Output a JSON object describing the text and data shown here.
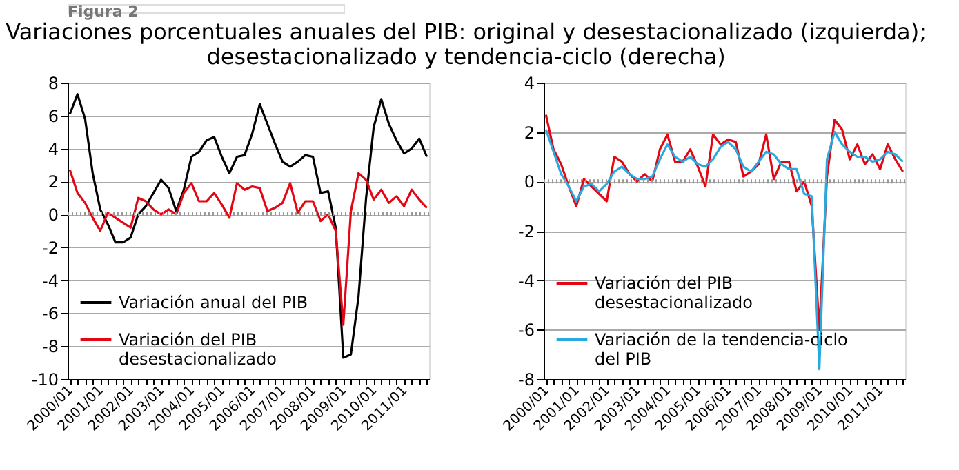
{
  "chart_data": [
    {
      "type": "line",
      "title": "Variaciones porcentuales anuales del PIB: original y desestacionalizado (izquierda); desestacionalizado y tendencia-ciclo (derecha)",
      "annotations": [
        "Figura 2"
      ],
      "categories": [
        "2000/01",
        null,
        null,
        null,
        "2001/01",
        null,
        null,
        null,
        "2002/01",
        null,
        null,
        null,
        "2003/01",
        null,
        null,
        null,
        "2004/01",
        null,
        null,
        null,
        "2005/01",
        null,
        null,
        null,
        "2006/01",
        null,
        null,
        null,
        "2007/01",
        null,
        null,
        null,
        "2008/01",
        null,
        null,
        null,
        "2009/01",
        null,
        null,
        null,
        "2010/01",
        null,
        null,
        null,
        "2011/01",
        null,
        null,
        null
      ],
      "series": [
        {
          "name": "Variación anual del PIB",
          "color": "#000000",
          "values": [
            6.1,
            7.3,
            5.8,
            2.5,
            0.3,
            -0.6,
            -1.7,
            -1.7,
            -1.4,
            0.0,
            0.5,
            1.3,
            2.1,
            1.6,
            0.2,
            1.5,
            3.5,
            3.8,
            4.5,
            4.7,
            3.5,
            2.5,
            3.5,
            3.6,
            4.9,
            6.7,
            5.5,
            4.3,
            3.2,
            2.9,
            3.2,
            3.6,
            3.5,
            1.3,
            1.4,
            -0.8,
            -8.7,
            -8.5,
            -5.0,
            1.0,
            5.3,
            7.0,
            5.5,
            4.5,
            3.7,
            4.0,
            4.6,
            3.5
          ]
        },
        {
          "name": "Variación del PIB desestacionalizado",
          "color": "#e30613",
          "values": [
            2.7,
            1.3,
            0.7,
            -0.2,
            -1.0,
            0.1,
            -0.2,
            -0.5,
            -0.8,
            1.0,
            0.8,
            0.3,
            0.0,
            0.3,
            0.0,
            1.3,
            1.9,
            0.8,
            0.8,
            1.3,
            0.6,
            -0.2,
            1.9,
            1.5,
            1.7,
            1.6,
            0.2,
            0.4,
            0.7,
            1.9,
            0.1,
            0.8,
            0.8,
            -0.4,
            0.0,
            -1.0,
            -6.7,
            0.2,
            2.5,
            2.1,
            0.9,
            1.5,
            0.7,
            1.1,
            0.5,
            1.5,
            0.9,
            0.4
          ]
        }
      ],
      "ylim": [
        -10,
        8
      ],
      "yticks": [
        -10,
        -8,
        -6,
        -4,
        -2,
        0,
        2,
        4,
        6,
        8
      ],
      "grid": "y",
      "legend": "bottom left",
      "ref_lines": [
        {
          "axis": "y",
          "value": 0,
          "color": "#999999",
          "line_style": "dotted"
        }
      ]
    },
    {
      "type": "line",
      "categories": [
        "2000/01",
        null,
        null,
        null,
        "2001/01",
        null,
        null,
        null,
        "2002/01",
        null,
        null,
        null,
        "2003/01",
        null,
        null,
        null,
        "2004/01",
        null,
        null,
        null,
        "2005/01",
        null,
        null,
        null,
        "2006/01",
        null,
        null,
        null,
        "2007/01",
        null,
        null,
        null,
        "2008/01",
        null,
        null,
        null,
        "2009/01",
        null,
        null,
        null,
        "2010/01",
        null,
        null,
        null,
        "2011/01",
        null,
        null,
        null
      ],
      "series": [
        {
          "name": "Variación del PIB desestacionalizado",
          "color": "#e30613",
          "values": [
            2.7,
            1.3,
            0.7,
            -0.2,
            -1.0,
            0.1,
            -0.2,
            -0.5,
            -0.8,
            1.0,
            0.8,
            0.3,
            0.0,
            0.3,
            0.0,
            1.3,
            1.9,
            0.8,
            0.8,
            1.3,
            0.6,
            -0.2,
            1.9,
            1.5,
            1.7,
            1.6,
            0.2,
            0.4,
            0.7,
            1.9,
            0.1,
            0.8,
            0.8,
            -0.4,
            0.0,
            -1.0,
            -6.0,
            0.2,
            2.5,
            2.1,
            0.9,
            1.5,
            0.7,
            1.1,
            0.5,
            1.5,
            0.9,
            0.4
          ]
        },
        {
          "name": "Variación de la tendencia-ciclo del PIB",
          "color": "#29a9e0",
          "values": [
            2.1,
            1.2,
            0.3,
            -0.2,
            -0.8,
            -0.2,
            -0.1,
            -0.4,
            -0.1,
            0.4,
            0.6,
            0.3,
            0.1,
            0.1,
            0.2,
            0.9,
            1.5,
            1.0,
            0.8,
            1.0,
            0.7,
            0.6,
            0.9,
            1.4,
            1.6,
            1.3,
            0.6,
            0.4,
            0.8,
            1.2,
            1.1,
            0.7,
            0.5,
            0.5,
            -0.5,
            -0.6,
            -7.6,
            0.9,
            2.0,
            1.5,
            1.2,
            1.0,
            1.0,
            0.8,
            0.9,
            1.2,
            1.1,
            0.8
          ]
        }
      ],
      "ylim": [
        -8,
        4
      ],
      "yticks": [
        -8,
        -6,
        -4,
        -2,
        0,
        2,
        4
      ],
      "grid": "y",
      "legend": "bottom left",
      "ref_lines": [
        {
          "axis": "y",
          "value": 0,
          "color": "#999999",
          "line_style": "dotted"
        }
      ]
    }
  ]
}
